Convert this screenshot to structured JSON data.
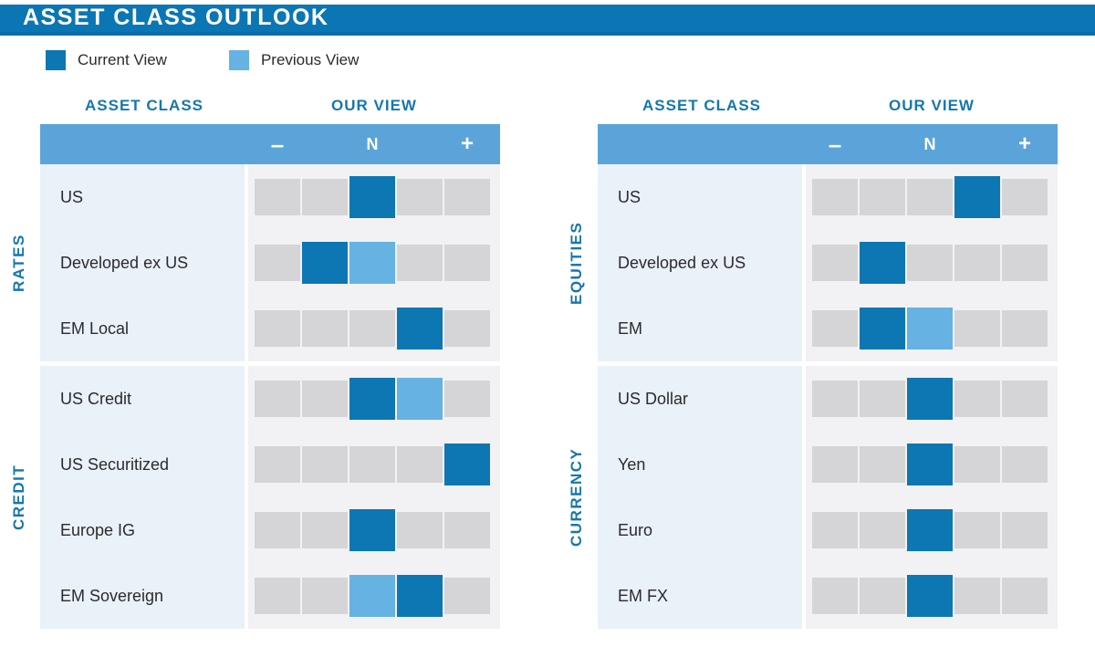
{
  "title": "ASSET CLASS OUTLOOK",
  "legend": {
    "current_label": "Current View",
    "previous_label": "Previous View"
  },
  "colors": {
    "title_bar": "#0b76b4",
    "title_bar_edge": "#0a6ca6",
    "header_bar": "#5ba4d9",
    "current": "#0d77b3",
    "previous": "#66b2e3",
    "cell_gray": "#d5d5d8",
    "cells_panel": "#f2f2f4",
    "label_column": "#e9f1f9",
    "heading_blue": "#1577ae",
    "text_dark": "#2b2b2b"
  },
  "chart_data": {
    "type": "heatmap",
    "title": "ASSET CLASS OUTLOOK",
    "legend_entries": [
      "Current View",
      "Previous View"
    ],
    "column_headers": [
      "ASSET CLASS",
      "OUR VIEW"
    ],
    "scale_ticks": [
      "–",
      "N",
      "+"
    ],
    "n_positions": 5,
    "scale_note": "position 1 = most negative (-), 3 = neutral (N), 5 = most positive (+)",
    "tables": [
      {
        "sections": [
          {
            "label": "RATES",
            "rows": [
              {
                "label": "US",
                "current": 3,
                "previous": null
              },
              {
                "label": "Developed ex US",
                "current": 2,
                "previous": 3
              },
              {
                "label": "EM Local",
                "current": 4,
                "previous": null
              }
            ]
          },
          {
            "label": "CREDIT",
            "rows": [
              {
                "label": "US Credit",
                "current": 3,
                "previous": 4
              },
              {
                "label": "US Securitized",
                "current": 5,
                "previous": null
              },
              {
                "label": "Europe IG",
                "current": 3,
                "previous": null
              },
              {
                "label": "EM Sovereign",
                "current": 4,
                "previous": 3
              }
            ]
          }
        ]
      },
      {
        "sections": [
          {
            "label": "EQUITIES",
            "rows": [
              {
                "label": "US",
                "current": 4,
                "previous": null
              },
              {
                "label": "Developed ex US",
                "current": 2,
                "previous": null
              },
              {
                "label": "EM",
                "current": 2,
                "previous": 3
              }
            ]
          },
          {
            "label": "CURRENCY",
            "rows": [
              {
                "label": "US Dollar",
                "current": 3,
                "previous": null
              },
              {
                "label": "Yen",
                "current": 3,
                "previous": null
              },
              {
                "label": "Euro",
                "current": 3,
                "previous": null
              },
              {
                "label": "EM FX",
                "current": 3,
                "previous": null
              }
            ]
          }
        ]
      }
    ]
  }
}
